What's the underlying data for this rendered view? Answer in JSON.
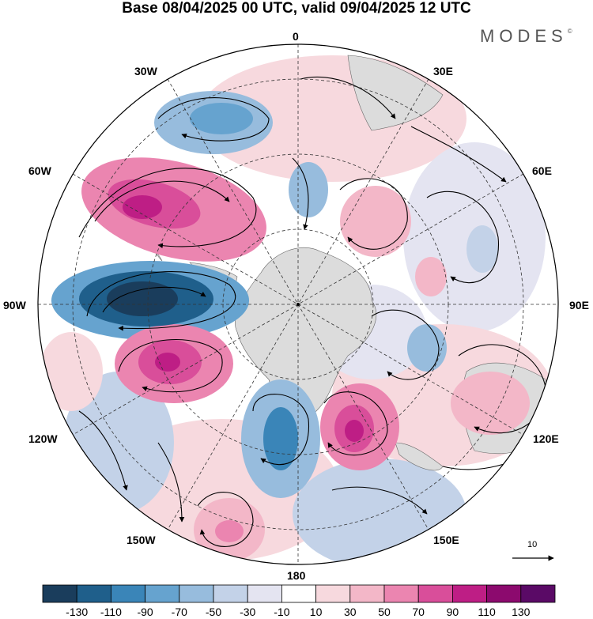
{
  "title": "Base 08/04/2025 00 UTC, valid 09/04/2025 12 UTC",
  "brand": "MODES",
  "brand_mark": "©",
  "longitude_labels": {
    "lon_0": "0",
    "lon_30e": "30E",
    "lon_60e": "60E",
    "lon_90e": "90E",
    "lon_120e": "120E",
    "lon_150e": "150E",
    "lon_180": "180",
    "lon_150w": "150W",
    "lon_120w": "120W",
    "lon_90w": "90W",
    "lon_60w": "60W",
    "lon_30w": "30W"
  },
  "reference_vector": "10",
  "colorbar": {
    "labels": [
      "-130",
      "-110",
      "-90",
      "-70",
      "-50",
      "-30",
      "-10",
      "10",
      "30",
      "50",
      "70",
      "90",
      "110",
      "130"
    ],
    "colors": [
      "#1a3d5c",
      "#1f5f8b",
      "#3a85b8",
      "#66a3cf",
      "#97bcdd",
      "#c3d2e8",
      "#e4e4f1",
      "#ffffff",
      "#f7d9de",
      "#f3b7c8",
      "#eb85b0",
      "#d94e9a",
      "#be1e85",
      "#8c0a6e",
      "#5a0a66"
    ]
  },
  "map": {
    "projection": "south polar stereographic",
    "land_color": "#dcdcdc",
    "anomaly_centers": [
      {
        "id": "neg-south-atlantic",
        "value": -60
      },
      {
        "id": "pos-drake",
        "value": 110
      },
      {
        "id": "neg-amundsen",
        "value": -130
      },
      {
        "id": "pos-bellingshausen-w",
        "value": 95
      },
      {
        "id": "neg-ross",
        "value": -80
      },
      {
        "id": "pos-ross-e",
        "value": 100
      },
      {
        "id": "pos-southeast-pacific",
        "value": 90
      },
      {
        "id": "pos-indian-w",
        "value": 50
      },
      {
        "id": "neg-indian-e",
        "value": -45
      },
      {
        "id": "pos-australia",
        "value": 40
      }
    ]
  }
}
